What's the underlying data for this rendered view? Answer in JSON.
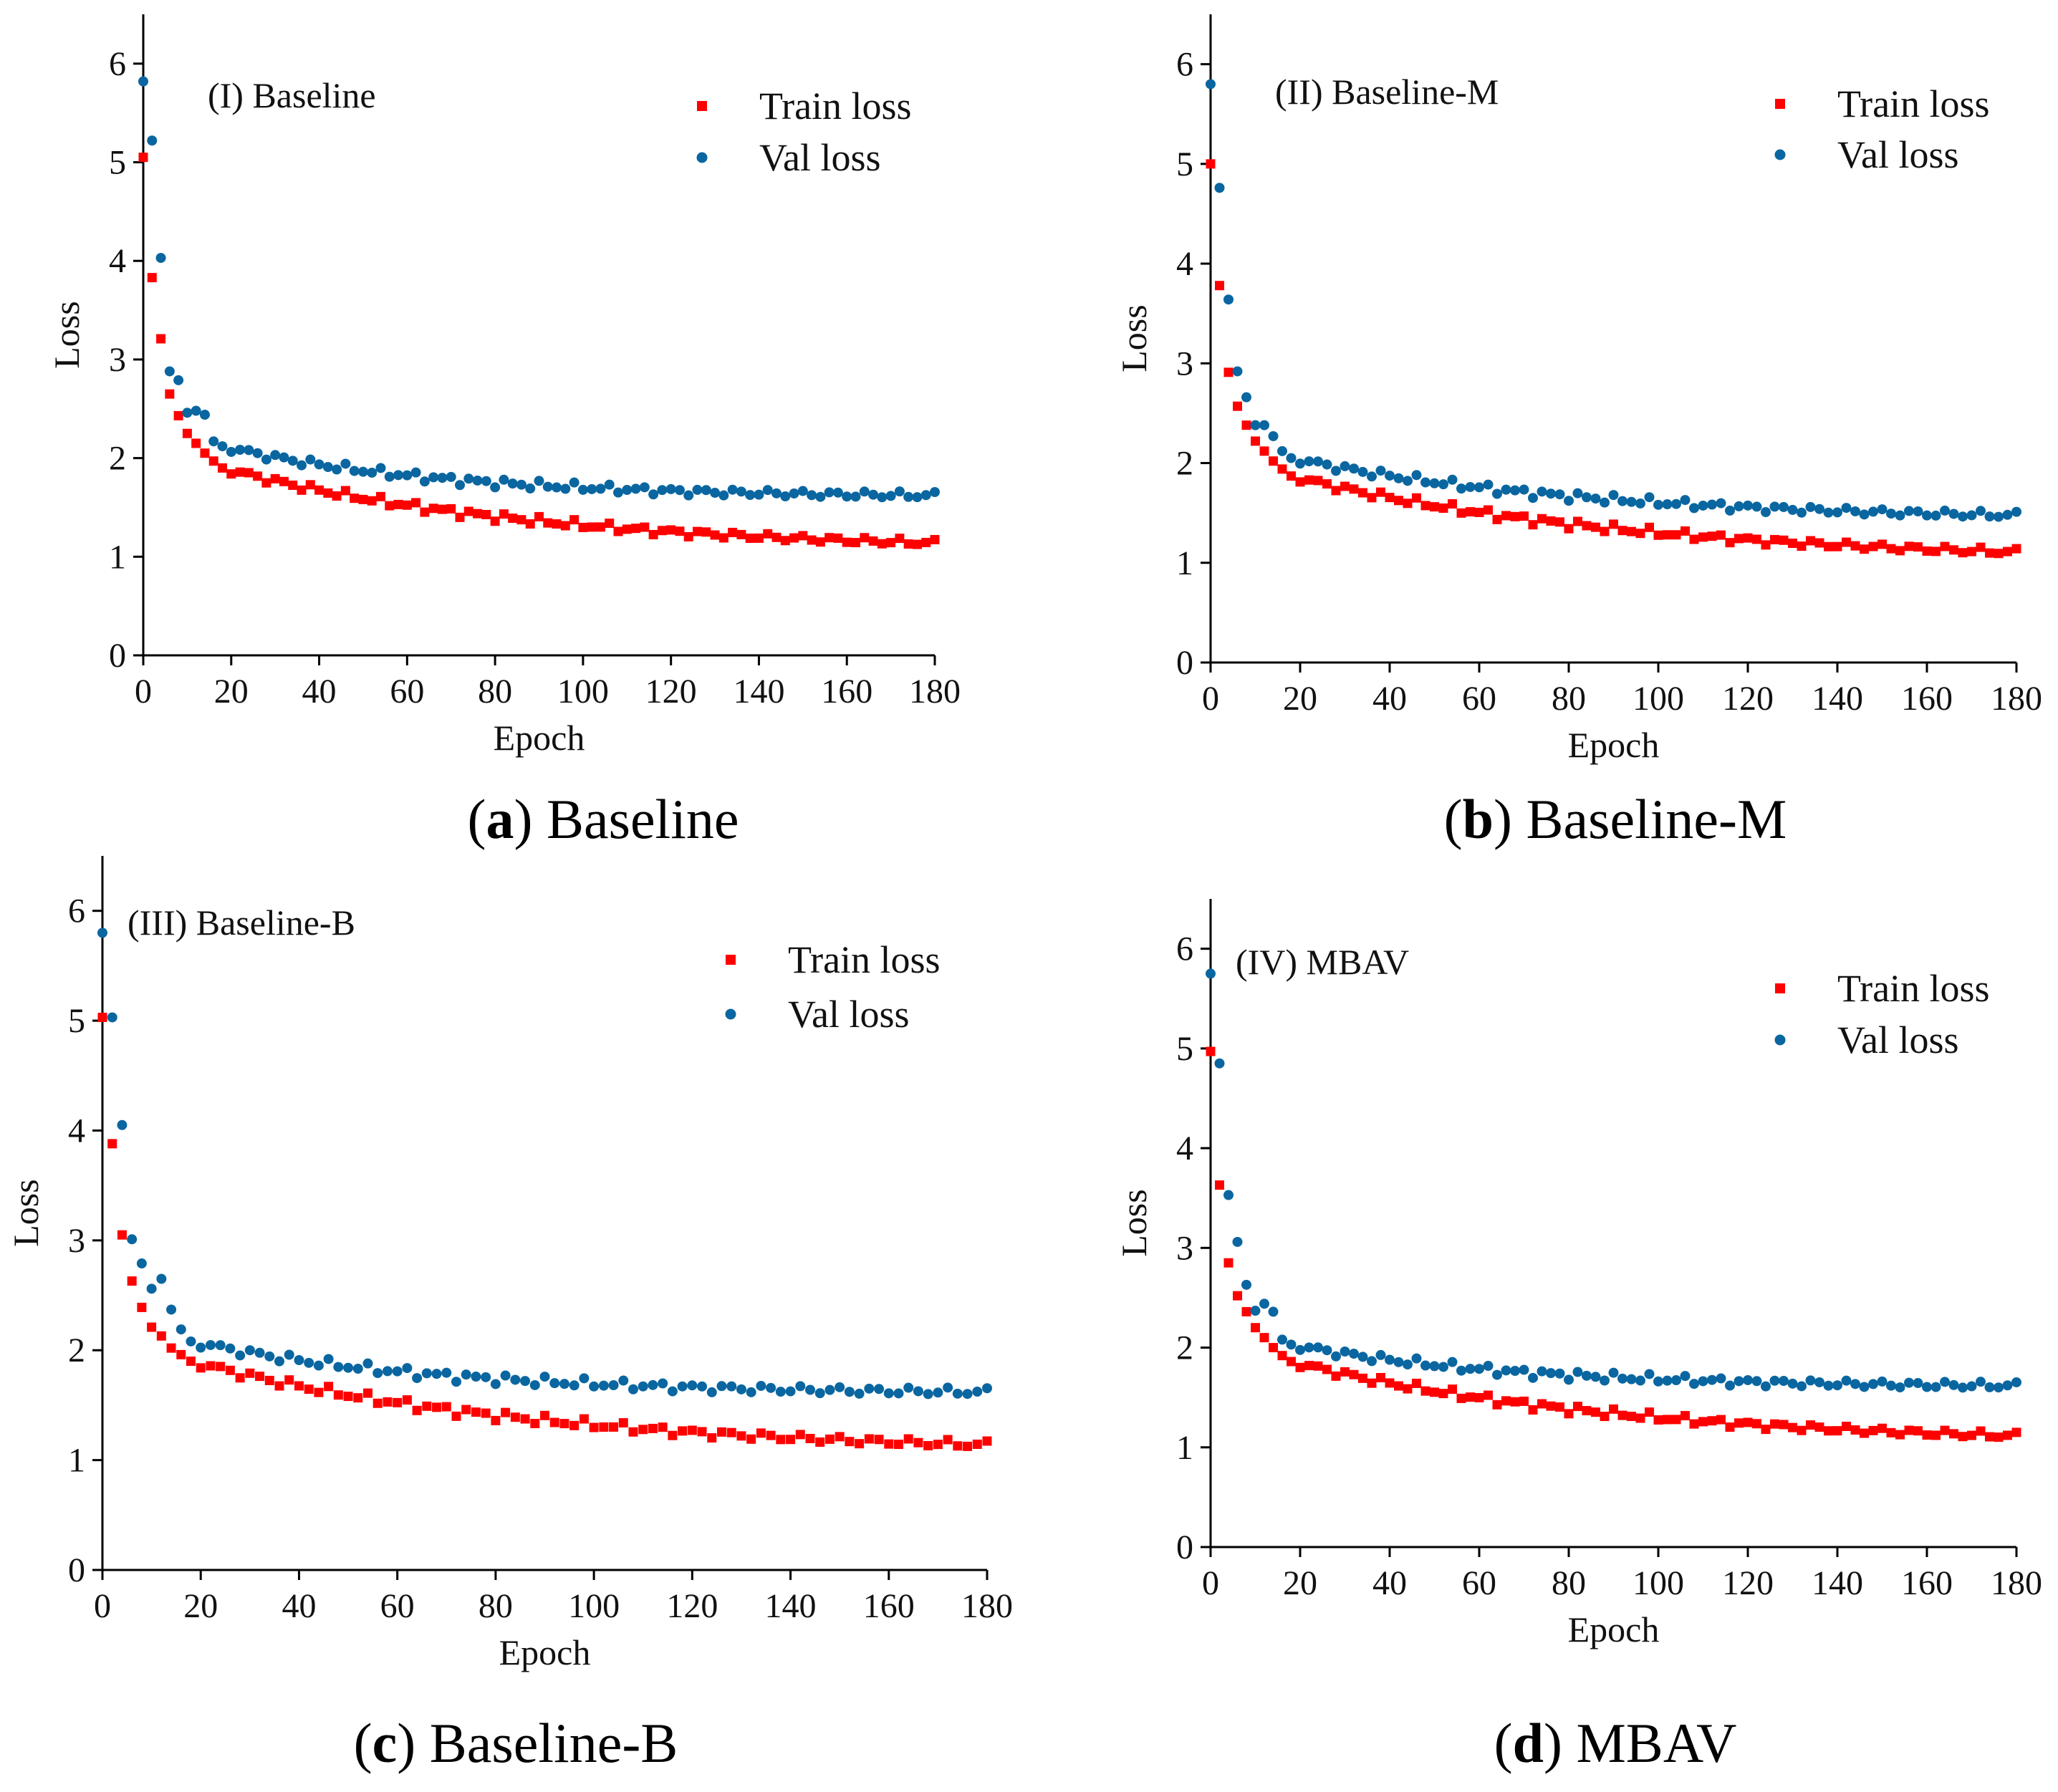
{
  "figure": {
    "colors": {
      "train": "#ff0000",
      "val": "#0a66a0",
      "axis": "#000000"
    },
    "legend": {
      "train_label": "Train loss",
      "val_label": "Val loss"
    },
    "captions": [
      {
        "letter": "a",
        "text": "Baseline"
      },
      {
        "letter": "b",
        "text": "Baseline-M"
      },
      {
        "letter": "c",
        "text": "Baseline-B"
      },
      {
        "letter": "d",
        "text": "MBAV"
      }
    ]
  },
  "chart_data": [
    {
      "type": "scatter",
      "title": "(I) Baseline",
      "xlabel": "Epoch",
      "ylabel": "Loss",
      "xlim": [
        0,
        180
      ],
      "ylim": [
        0,
        6.5
      ],
      "xticks": [
        0,
        20,
        40,
        60,
        80,
        100,
        120,
        140,
        160,
        180
      ],
      "yticks": [
        0,
        1,
        2,
        3,
        4,
        5,
        6
      ],
      "legend_position": "top-right",
      "series": [
        {
          "name": "Train loss",
          "marker": "square",
          "start": [
            5.05,
            3.83,
            3.21,
            2.65,
            2.43,
            2.25,
            2.15,
            2.05,
            1.97,
            1.9
          ],
          "end": 1.05,
          "decay": 0.028
        },
        {
          "name": "Val loss",
          "marker": "circle",
          "start": [
            5.82,
            5.22,
            4.03,
            2.88,
            2.79,
            2.46,
            2.48,
            2.44,
            2.17,
            2.12
          ],
          "end": 1.6,
          "decay": 0.04
        }
      ]
    },
    {
      "type": "scatter",
      "title": "(II) Baseline-M",
      "xlabel": "Epoch",
      "ylabel": "Loss",
      "xlim": [
        0,
        180
      ],
      "ylim": [
        0,
        6.5
      ],
      "xticks": [
        0,
        20,
        40,
        60,
        80,
        100,
        120,
        140,
        160,
        180
      ],
      "yticks": [
        0,
        1,
        2,
        3,
        4,
        5,
        6
      ],
      "legend_position": "top-right",
      "series": [
        {
          "name": "Train loss",
          "marker": "square",
          "start": [
            5.0,
            3.78,
            2.91,
            2.57,
            2.38,
            2.22,
            2.12,
            2.02,
            1.94,
            1.87
          ],
          "end": 1.0,
          "decay": 0.026
        },
        {
          "name": "Val loss",
          "marker": "circle",
          "start": [
            5.8,
            4.76,
            3.64,
            2.92,
            2.66,
            2.38,
            2.38,
            2.27,
            2.12,
            2.05
          ],
          "end": 1.42,
          "decay": 0.03
        }
      ]
    },
    {
      "type": "scatter",
      "title": "(III) Baseline-B",
      "xlabel": "Epoch",
      "ylabel": "Loss",
      "xlim": [
        0,
        180
      ],
      "ylim": [
        0,
        6.5
      ],
      "xticks": [
        0,
        20,
        40,
        60,
        80,
        100,
        120,
        140,
        160,
        180
      ],
      "yticks": [
        0,
        1,
        2,
        3,
        4,
        5,
        6
      ],
      "legend_position": "top-right",
      "series": [
        {
          "name": "Train loss",
          "marker": "square",
          "start": [
            5.03,
            3.88,
            3.05,
            2.63,
            2.39,
            2.21,
            2.13,
            2.02,
            1.96,
            1.9
          ],
          "end": 1.05,
          "decay": 0.028
        },
        {
          "name": "Val loss",
          "marker": "circle",
          "start": [
            5.8,
            5.03,
            4.05,
            3.01,
            2.79,
            2.56,
            2.65,
            2.37,
            2.19,
            2.08
          ],
          "end": 1.6,
          "decay": 0.04
        }
      ]
    },
    {
      "type": "scatter",
      "title": "(IV) MBAV",
      "xlabel": "Epoch",
      "ylabel": "Loss",
      "xlim": [
        0,
        180
      ],
      "ylim": [
        0,
        6.5
      ],
      "xticks": [
        0,
        20,
        40,
        60,
        80,
        100,
        120,
        140,
        160,
        180
      ],
      "yticks": [
        0,
        1,
        2,
        3,
        4,
        5,
        6
      ],
      "legend_position": "top-right",
      "series": [
        {
          "name": "Train loss",
          "marker": "square",
          "start": [
            4.97,
            3.63,
            2.85,
            2.52,
            2.36,
            2.2,
            2.1,
            2.0,
            1.92,
            1.86
          ],
          "end": 1.02,
          "decay": 0.027
        },
        {
          "name": "Val loss",
          "marker": "circle",
          "start": [
            5.75,
            4.85,
            3.53,
            3.06,
            2.63,
            2.37,
            2.44,
            2.36,
            2.08,
            2.03
          ],
          "end": 1.6,
          "decay": 0.04
        }
      ]
    }
  ]
}
